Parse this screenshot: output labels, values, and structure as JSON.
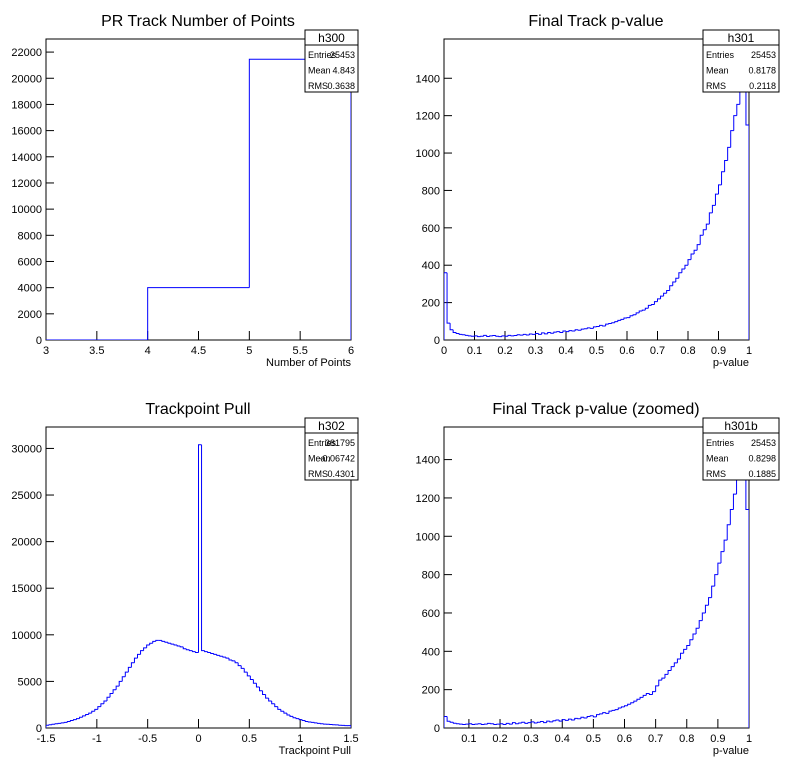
{
  "chart_data": [
    {
      "type": "histogram",
      "title": "PR Track Number of Points",
      "x_label": "Number of Points",
      "color": "#0000ff",
      "bins": [
        3,
        4,
        5,
        6
      ],
      "values": [
        0,
        4000,
        21453
      ],
      "xlim": [
        3,
        6
      ],
      "ylim": [
        0,
        23000
      ],
      "xticks": [
        3,
        3.5,
        4,
        4.5,
        5,
        5.5,
        6
      ],
      "yticks": [
        0,
        2000,
        4000,
        6000,
        8000,
        10000,
        12000,
        14000,
        16000,
        18000,
        20000,
        22000
      ],
      "stats": {
        "name": "h300",
        "rows": [
          [
            "Entries",
            "25453"
          ],
          [
            "Mean",
            "4.843"
          ],
          [
            "RMS",
            "0.3638"
          ]
        ]
      }
    },
    {
      "type": "histogram",
      "title": "Final Track p-value",
      "x_label": "p-value",
      "color": "#0000ff",
      "bins": [
        0,
        0.01,
        0.02,
        0.03,
        0.04,
        0.05,
        0.06,
        0.07,
        0.08,
        0.09,
        0.1,
        0.11,
        0.12,
        0.13,
        0.14,
        0.15,
        0.16,
        0.17,
        0.18,
        0.19,
        0.2,
        0.21,
        0.22,
        0.23,
        0.24,
        0.25,
        0.26,
        0.27,
        0.28,
        0.29,
        0.3,
        0.31,
        0.32,
        0.33,
        0.34,
        0.35,
        0.36,
        0.37,
        0.38,
        0.39,
        0.4,
        0.41,
        0.42,
        0.43,
        0.44,
        0.45,
        0.46,
        0.47,
        0.48,
        0.49,
        0.5,
        0.51,
        0.52,
        0.53,
        0.54,
        0.55,
        0.56,
        0.57,
        0.58,
        0.59,
        0.6,
        0.61,
        0.62,
        0.63,
        0.64,
        0.65,
        0.66,
        0.67,
        0.68,
        0.69,
        0.7,
        0.71,
        0.72,
        0.73,
        0.74,
        0.75,
        0.76,
        0.77,
        0.78,
        0.79,
        0.8,
        0.81,
        0.82,
        0.83,
        0.84,
        0.85,
        0.86,
        0.87,
        0.88,
        0.89,
        0.9,
        0.91,
        0.92,
        0.93,
        0.94,
        0.95,
        0.96,
        0.97,
        0.98,
        0.99,
        1
      ],
      "values": [
        360,
        90,
        55,
        40,
        35,
        30,
        28,
        25,
        22,
        20,
        22,
        18,
        20,
        25,
        19,
        22,
        24,
        20,
        18,
        22,
        20,
        25,
        22,
        24,
        28,
        26,
        30,
        27,
        32,
        30,
        35,
        30,
        38,
        33,
        40,
        36,
        42,
        45,
        40,
        48,
        45,
        50,
        48,
        55,
        52,
        58,
        60,
        65,
        62,
        70,
        72,
        78,
        75,
        85,
        88,
        92,
        98,
        105,
        110,
        118,
        120,
        130,
        135,
        145,
        155,
        160,
        170,
        185,
        190,
        205,
        220,
        235,
        250,
        265,
        290,
        310,
        330,
        360,
        380,
        400,
        430,
        460,
        480,
        510,
        560,
        590,
        620,
        680,
        720,
        780,
        830,
        900,
        960,
        1030,
        1120,
        1200,
        1260,
        1330,
        1520,
        1150
      ],
      "xlim": [
        0,
        1
      ],
      "ylim": [
        0,
        1610
      ],
      "xticks": [
        0,
        0.1,
        0.2,
        0.3,
        0.4,
        0.5,
        0.6,
        0.7,
        0.8,
        0.9,
        1
      ],
      "yticks": [
        0,
        200,
        400,
        600,
        800,
        1000,
        1200,
        1400
      ],
      "stats": {
        "name": "h301",
        "rows": [
          [
            "Entries",
            "25453"
          ],
          [
            "Mean",
            "0.8178"
          ],
          [
            "RMS",
            "0.2118"
          ]
        ]
      }
    },
    {
      "type": "histogram",
      "title": "Trackpoint Pull",
      "x_label": "Trackpoint Pull",
      "color": "#0000ff",
      "bins": [
        -1.5,
        -1.47,
        -1.44,
        -1.41,
        -1.38,
        -1.35,
        -1.32,
        -1.29,
        -1.26,
        -1.23,
        -1.2,
        -1.17,
        -1.14,
        -1.11,
        -1.08,
        -1.05,
        -1.02,
        -0.99,
        -0.96,
        -0.93,
        -0.9,
        -0.87,
        -0.84,
        -0.81,
        -0.78,
        -0.75,
        -0.72,
        -0.69,
        -0.66,
        -0.63,
        -0.6,
        -0.57,
        -0.54,
        -0.51,
        -0.48,
        -0.45,
        -0.42,
        -0.39,
        -0.36,
        -0.33,
        -0.3,
        -0.27,
        -0.24,
        -0.21,
        -0.18,
        -0.15,
        -0.12,
        -0.09,
        -0.06,
        -0.03,
        0,
        0.03,
        0.06,
        0.09,
        0.12,
        0.15,
        0.18,
        0.21,
        0.24,
        0.27,
        0.3,
        0.33,
        0.36,
        0.39,
        0.42,
        0.45,
        0.48,
        0.51,
        0.54,
        0.57,
        0.6,
        0.63,
        0.66,
        0.69,
        0.72,
        0.75,
        0.78,
        0.81,
        0.84,
        0.87,
        0.9,
        0.93,
        0.96,
        0.99,
        1.02,
        1.05,
        1.08,
        1.11,
        1.14,
        1.17,
        1.2,
        1.23,
        1.26,
        1.29,
        1.32,
        1.35,
        1.38,
        1.41,
        1.44,
        1.47,
        1.5
      ],
      "values": [
        300,
        350,
        400,
        450,
        500,
        550,
        600,
        700,
        800,
        900,
        1000,
        1150,
        1300,
        1450,
        1600,
        1800,
        2000,
        2300,
        2600,
        2900,
        3300,
        3700,
        4100,
        4500,
        5000,
        5500,
        6000,
        6500,
        7000,
        7500,
        7900,
        8300,
        8600,
        8900,
        9100,
        9300,
        9400,
        9400,
        9300,
        9200,
        9100,
        9000,
        8900,
        8800,
        8700,
        8500,
        8400,
        8300,
        8200,
        8100,
        30400,
        8300,
        8200,
        8100,
        8000,
        7900,
        7800,
        7700,
        7600,
        7500,
        7300,
        7200,
        7000,
        6700,
        6400,
        6000,
        5600,
        5200,
        4800,
        4400,
        4000,
        3600,
        3200,
        2900,
        2600,
        2300,
        2000,
        1800,
        1600,
        1400,
        1250,
        1100,
        1000,
        900,
        800,
        700,
        650,
        600,
        550,
        500,
        450,
        420,
        400,
        380,
        350,
        330,
        300,
        280,
        260,
        250
      ],
      "xlim": [
        -1.5,
        1.5
      ],
      "ylim": [
        0,
        32300
      ],
      "xticks": [
        -1.5,
        -1,
        -0.5,
        0,
        0.5,
        1,
        1.5
      ],
      "yticks": [
        0,
        5000,
        10000,
        15000,
        20000,
        25000,
        30000
      ],
      "stats": {
        "name": "h302",
        "rows": [
          [
            "Entries",
            "381795"
          ],
          [
            "Mean",
            "-0.06742"
          ],
          [
            "RMS",
            "0.4301"
          ]
        ]
      }
    },
    {
      "type": "histogram",
      "title": "Final Track p-value (zoomed)",
      "x_label": "p-value",
      "color": "#0000ff",
      "bins": [
        0.02,
        0.03,
        0.04,
        0.05,
        0.06,
        0.07,
        0.08,
        0.09,
        0.1,
        0.11,
        0.12,
        0.13,
        0.14,
        0.15,
        0.16,
        0.17,
        0.18,
        0.19,
        0.2,
        0.21,
        0.22,
        0.23,
        0.24,
        0.25,
        0.26,
        0.27,
        0.28,
        0.29,
        0.3,
        0.31,
        0.32,
        0.33,
        0.34,
        0.35,
        0.36,
        0.37,
        0.38,
        0.39,
        0.4,
        0.41,
        0.42,
        0.43,
        0.44,
        0.45,
        0.46,
        0.47,
        0.48,
        0.49,
        0.5,
        0.51,
        0.52,
        0.53,
        0.54,
        0.55,
        0.56,
        0.57,
        0.58,
        0.59,
        0.6,
        0.61,
        0.62,
        0.63,
        0.64,
        0.65,
        0.66,
        0.67,
        0.68,
        0.69,
        0.7,
        0.71,
        0.72,
        0.73,
        0.74,
        0.75,
        0.76,
        0.77,
        0.78,
        0.79,
        0.8,
        0.81,
        0.82,
        0.83,
        0.84,
        0.85,
        0.86,
        0.87,
        0.88,
        0.89,
        0.9,
        0.91,
        0.92,
        0.93,
        0.94,
        0.95,
        0.96,
        0.97,
        0.98,
        0.99,
        1
      ],
      "values": [
        60,
        35,
        30,
        25,
        22,
        20,
        18,
        20,
        22,
        18,
        20,
        22,
        18,
        20,
        24,
        22,
        18,
        20,
        22,
        18,
        24,
        20,
        28,
        22,
        26,
        30,
        24,
        28,
        32,
        26,
        30,
        34,
        28,
        36,
        32,
        38,
        42,
        36,
        44,
        40,
        46,
        42,
        50,
        48,
        56,
        52,
        60,
        64,
        58,
        70,
        74,
        80,
        76,
        88,
        92,
        96,
        104,
        110,
        116,
        124,
        132,
        140,
        150,
        160,
        170,
        180,
        175,
        190,
        220,
        250,
        260,
        280,
        300,
        320,
        340,
        360,
        390,
        410,
        430,
        460,
        490,
        520,
        560,
        600,
        640,
        680,
        740,
        800,
        860,
        920,
        980,
        1060,
        1140,
        1220,
        1300,
        1380,
        1500,
        1140
      ],
      "xlim": [
        0.02,
        1
      ],
      "ylim": [
        0,
        1570
      ],
      "xticks": [
        0.1,
        0.2,
        0.3,
        0.4,
        0.5,
        0.6,
        0.7,
        0.8,
        0.9,
        1
      ],
      "yticks": [
        0,
        200,
        400,
        600,
        800,
        1000,
        1200,
        1400
      ],
      "stats": {
        "name": "h301b",
        "rows": [
          [
            "Entries",
            "25453"
          ],
          [
            "Mean",
            "0.8298"
          ],
          [
            "RMS",
            "0.1885"
          ]
        ]
      }
    }
  ]
}
